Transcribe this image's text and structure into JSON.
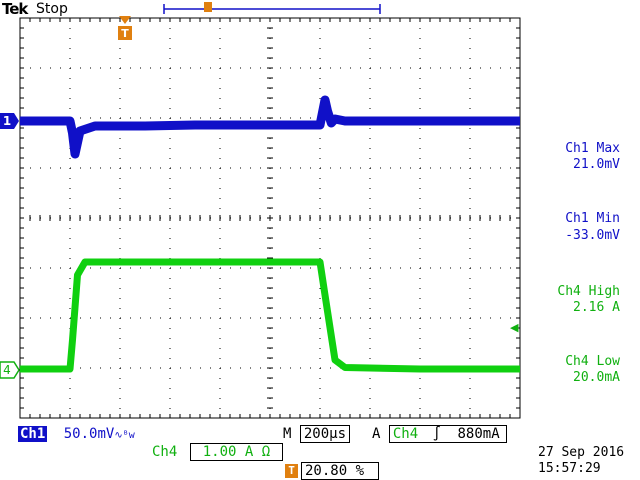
{
  "header": {
    "brand": "Tek",
    "status": "Stop"
  },
  "markers": {
    "trigger_glyph": "T",
    "ch1_marker": "1",
    "ch4_marker": "4",
    "trigger_level_glyph": "◀"
  },
  "measurements": {
    "ch1_max": {
      "label": "Ch1 Max",
      "value": "21.0mV"
    },
    "ch1_min": {
      "label": "Ch1 Min",
      "value": "-33.0mV"
    },
    "ch4_high": {
      "label": "Ch4 High",
      "value": "2.16 A"
    },
    "ch4_low": {
      "label": "Ch4 Low",
      "value": "20.0mA"
    }
  },
  "settings": {
    "ch1_tag": "Ch1",
    "ch1_scale": "50.0mV",
    "ch1_bw_glyph": "∿ᴮw",
    "timebase_label": "M",
    "timebase": "200µs",
    "trigger_mode": "A",
    "trigger_source": "Ch4",
    "trigger_slope_glyph": "∫",
    "trigger_level": "880mA",
    "ch4_tag": "Ch4",
    "ch4_scale": "1.00 A Ω",
    "trigger_pos_glyph": "T",
    "trigger_position": "20.80 %"
  },
  "datetime": {
    "date": "27 Sep  2016",
    "time": "15:57:29"
  },
  "colors": {
    "ch1": "#1010c8",
    "ch4": "#10d010",
    "grid": "#000000"
  },
  "chart_data": {
    "type": "line",
    "xlabel": "",
    "ylabel": "",
    "time_per_div_us": 200,
    "series": [
      {
        "name": "Ch1",
        "units": "mV",
        "x_us": [
          0,
          200,
          210,
          220,
          240,
          300,
          500,
          700,
          1200,
          1220,
          1230,
          1245,
          1260,
          1300,
          1600,
          2000
        ],
        "y": [
          0,
          0,
          -12,
          -33,
          -10,
          -5,
          -5,
          -4,
          -4,
          21,
          10,
          -2,
          2,
          0,
          0,
          0
        ]
      },
      {
        "name": "Ch4",
        "units": "A",
        "x_us": [
          0,
          200,
          210,
          230,
          260,
          400,
          800,
          1200,
          1220,
          1260,
          1300,
          1600,
          2000
        ],
        "y": [
          0.02,
          0.02,
          0.6,
          1.9,
          2.16,
          2.16,
          2.16,
          2.16,
          1.5,
          0.2,
          0.05,
          0.02,
          0.02
        ]
      }
    ]
  }
}
